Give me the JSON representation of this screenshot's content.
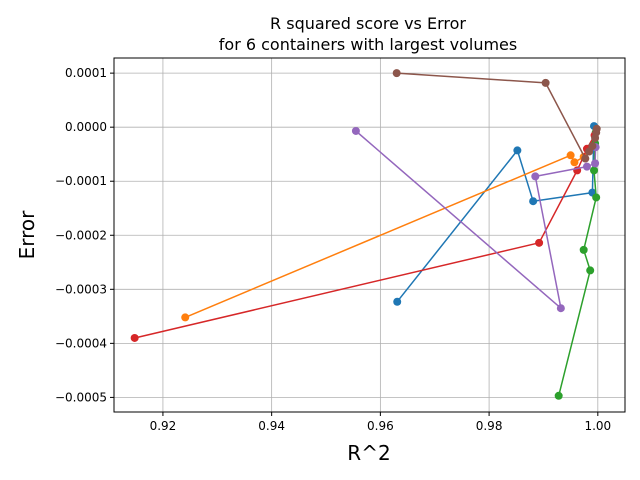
{
  "chart_data": {
    "type": "line",
    "title_lines": [
      "R squared score vs Error",
      "for 6 containers with largest volumes"
    ],
    "xlabel": "R^2",
    "ylabel": "Error",
    "xlim": [
      0.911,
      1.005
    ],
    "ylim": [
      -0.000527,
      0.000128
    ],
    "grid": true,
    "x_ticks": [
      0.92,
      0.94,
      0.96,
      0.98,
      1.0
    ],
    "x_tick_labels": [
      "0.92",
      "0.94",
      "0.96",
      "0.98",
      "1.00"
    ],
    "y_ticks": [
      0.0001,
      0.0,
      -0.0001,
      -0.0002,
      -0.0003,
      -0.0004,
      -0.0005
    ],
    "y_tick_labels": [
      "0.0001",
      "0.0000",
      "−0.0001",
      "−0.0002",
      "−0.0003",
      "−0.0004",
      "−0.0005"
    ],
    "series": [
      {
        "color": "#1f77b4",
        "points": [
          [
            0.9631,
            -0.000323
          ],
          [
            0.9852,
            -4.3e-05
          ],
          [
            0.9881,
            -0.000137
          ],
          [
            0.999,
            -0.000121
          ],
          [
            0.9993,
            2e-06
          ]
        ]
      },
      {
        "color": "#ff7f0e",
        "points": [
          [
            0.9241,
            -0.000352
          ],
          [
            0.995,
            -5.2e-05
          ],
          [
            0.9957,
            -6.5e-05
          ],
          [
            0.9974,
            -5.5e-05
          ]
        ]
      },
      {
        "color": "#2ca02c",
        "points": [
          [
            0.9928,
            -0.000497
          ],
          [
            0.9986,
            -0.000265
          ],
          [
            0.9974,
            -0.000227
          ],
          [
            0.9997,
            -0.00013
          ],
          [
            0.9993,
            -8e-05
          ],
          [
            0.9995,
            -3e-05
          ],
          [
            0.9996,
            -1e-05
          ]
        ]
      },
      {
        "color": "#d62728",
        "points": [
          [
            0.9148,
            -0.00039
          ],
          [
            0.9892,
            -0.000214
          ],
          [
            0.9962,
            -8e-05
          ],
          [
            0.998,
            -4e-05
          ],
          [
            0.9994,
            -1.5e-05
          ]
        ]
      },
      {
        "color": "#9467bd",
        "points": [
          [
            0.9555,
            -7e-06
          ],
          [
            0.9932,
            -0.000335
          ],
          [
            0.9885,
            -9.1e-05
          ],
          [
            0.998,
            -7.3e-05
          ],
          [
            0.9995,
            -6.7e-05
          ],
          [
            0.9996,
            -3.7e-05
          ]
        ]
      },
      {
        "color": "#8c564b",
        "points": [
          [
            0.963,
            0.0001
          ],
          [
            0.9904,
            8.2e-05
          ],
          [
            0.9977,
            -5.8e-05
          ],
          [
            0.9984,
            -4.5e-05
          ],
          [
            0.999,
            -3.5e-05
          ],
          [
            0.9995,
            -2e-05
          ],
          [
            0.9997,
            -1e-05
          ],
          [
            0.9998,
            -3e-06
          ]
        ]
      }
    ]
  }
}
